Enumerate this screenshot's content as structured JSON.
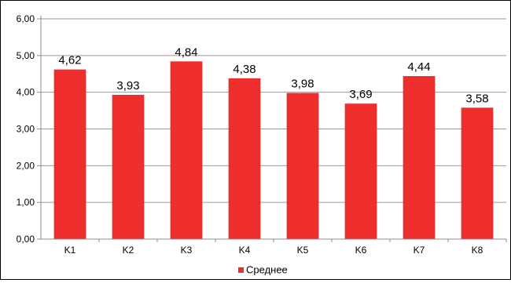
{
  "chart_data": {
    "type": "bar",
    "title": "",
    "xlabel": "",
    "ylabel": "",
    "categories": [
      "K1",
      "K2",
      "K3",
      "K4",
      "K5",
      "K6",
      "K7",
      "K8"
    ],
    "series": [
      {
        "name": "Среднее",
        "color": "#ee2d2d",
        "values": [
          4.62,
          3.93,
          4.84,
          4.38,
          3.98,
          3.69,
          4.44,
          3.58
        ],
        "value_labels": [
          "4,62",
          "3,93",
          "4,84",
          "4,38",
          "3,98",
          "3,69",
          "4,44",
          "3,58"
        ]
      }
    ],
    "ylim": [
      0,
      6
    ],
    "yticks": [
      0,
      1,
      2,
      3,
      4,
      5,
      6
    ],
    "ytick_labels": [
      "0,00",
      "1,00",
      "2,00",
      "3,00",
      "4,00",
      "5,00",
      "6,00"
    ],
    "grid": true,
    "legend_position": "bottom"
  }
}
